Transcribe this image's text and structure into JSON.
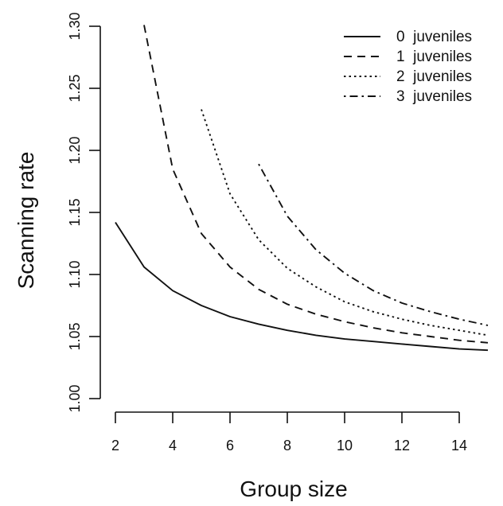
{
  "chart_data": {
    "type": "line",
    "title": "",
    "xlabel": "Group size",
    "ylabel": "Scanning rate",
    "xlim": [
      1.5,
      15.5
    ],
    "ylim": [
      0.99,
      1.31
    ],
    "xticks": [
      2,
      4,
      6,
      8,
      10,
      12,
      14
    ],
    "yticks": [
      1.0,
      1.05,
      1.1,
      1.15,
      1.2,
      1.25,
      1.3
    ],
    "ytick_labels": [
      "1.00",
      "1.05",
      "1.10",
      "1.15",
      "1.20",
      "1.25",
      "1.30"
    ],
    "grid": false,
    "legend_position": "top-right",
    "series": [
      {
        "name": "0  juveniles",
        "dash": "solid",
        "x": [
          2,
          3,
          4,
          5,
          6,
          7,
          8,
          9,
          10,
          11,
          12,
          13,
          14,
          15
        ],
        "values": [
          1.142,
          1.106,
          1.087,
          1.075,
          1.066,
          1.06,
          1.055,
          1.051,
          1.048,
          1.046,
          1.044,
          1.042,
          1.04,
          1.039
        ]
      },
      {
        "name": "1  juveniles",
        "dash": "dashed",
        "x": [
          3,
          4,
          5,
          6,
          7,
          8,
          9,
          10,
          11,
          12,
          13,
          14,
          15
        ],
        "values": [
          1.301,
          1.185,
          1.133,
          1.106,
          1.088,
          1.076,
          1.068,
          1.062,
          1.057,
          1.053,
          1.05,
          1.047,
          1.045
        ]
      },
      {
        "name": "2  juveniles",
        "dash": "dotted",
        "x": [
          5,
          6,
          7,
          8,
          9,
          10,
          11,
          12,
          13,
          14,
          15
        ],
        "values": [
          1.233,
          1.165,
          1.128,
          1.105,
          1.09,
          1.078,
          1.07,
          1.064,
          1.059,
          1.055,
          1.051
        ]
      },
      {
        "name": "3  juveniles",
        "dash": "dashdot",
        "x": [
          7,
          8,
          9,
          10,
          11,
          12,
          13,
          14,
          15
        ],
        "values": [
          1.189,
          1.147,
          1.12,
          1.101,
          1.087,
          1.077,
          1.07,
          1.064,
          1.059
        ]
      }
    ]
  }
}
